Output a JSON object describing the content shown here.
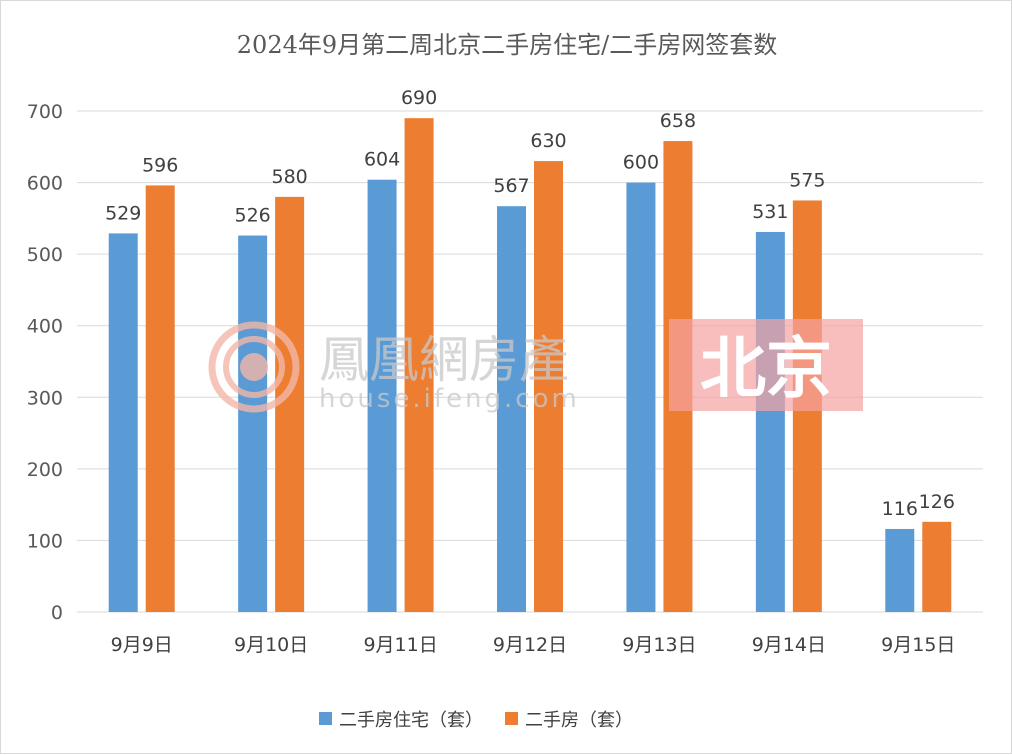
{
  "chart_data": {
    "type": "bar",
    "title": "2024年9月第二周北京二手房住宅/二手房网签套数",
    "categories": [
      "9月9日",
      "9月10日",
      "9月11日",
      "9月12日",
      "9月13日",
      "9月14日",
      "9月15日"
    ],
    "series": [
      {
        "name": "二手房住宅（套）",
        "color": "#5b9bd5",
        "values": [
          529,
          526,
          604,
          567,
          600,
          531,
          116
        ]
      },
      {
        "name": "二手房（套）",
        "color": "#ed7d31",
        "values": [
          596,
          580,
          690,
          630,
          658,
          575,
          126
        ]
      }
    ],
    "ylim": [
      0,
      700
    ],
    "yticks": [
      0,
      100,
      200,
      300,
      400,
      500,
      600,
      700
    ],
    "grid": true,
    "legend": "bottom",
    "data_labels": true
  },
  "watermark": {
    "brand": "鳳凰網房產",
    "url": "house.ifeng.com",
    "city": "北京"
  }
}
